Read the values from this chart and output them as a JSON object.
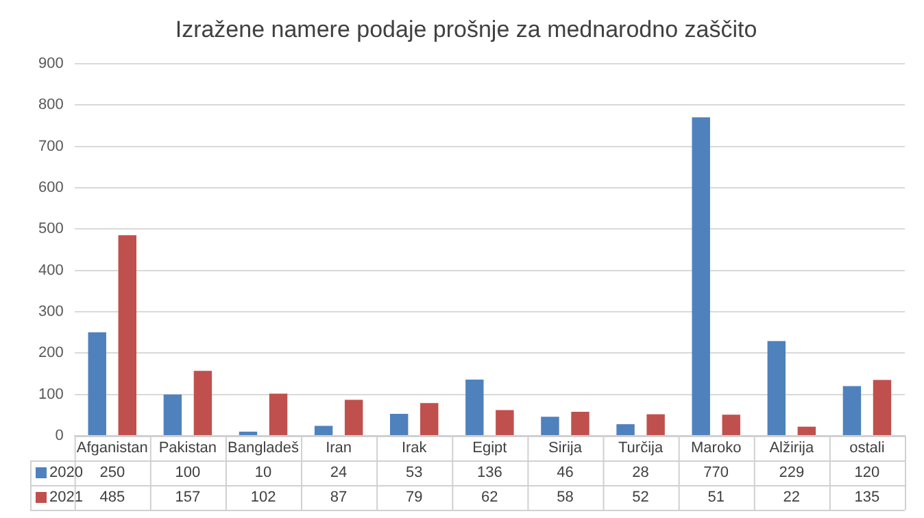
{
  "chart_data": {
    "type": "bar",
    "title": "Izražene namere podaje prošnje za mednarodno zaščito",
    "categories": [
      "Afganistan",
      "Pakistan",
      "Bangladeš",
      "Iran",
      "Irak",
      "Egipt",
      "Sirija",
      "Turčija",
      "Maroko",
      "Alžirija",
      "ostali"
    ],
    "series": [
      {
        "name": "2020",
        "color": "#4f81bd",
        "values": [
          250,
          100,
          10,
          24,
          53,
          136,
          46,
          28,
          770,
          229,
          120
        ]
      },
      {
        "name": "2021",
        "color": "#c0504d",
        "values": [
          485,
          157,
          102,
          87,
          79,
          62,
          58,
          52,
          51,
          22,
          135
        ]
      }
    ],
    "ylim": [
      0,
      900
    ],
    "yticks": [
      0,
      100,
      200,
      300,
      400,
      500,
      600,
      700,
      800,
      900
    ],
    "grid": "y",
    "legend": "bottom",
    "data_labels": true
  }
}
